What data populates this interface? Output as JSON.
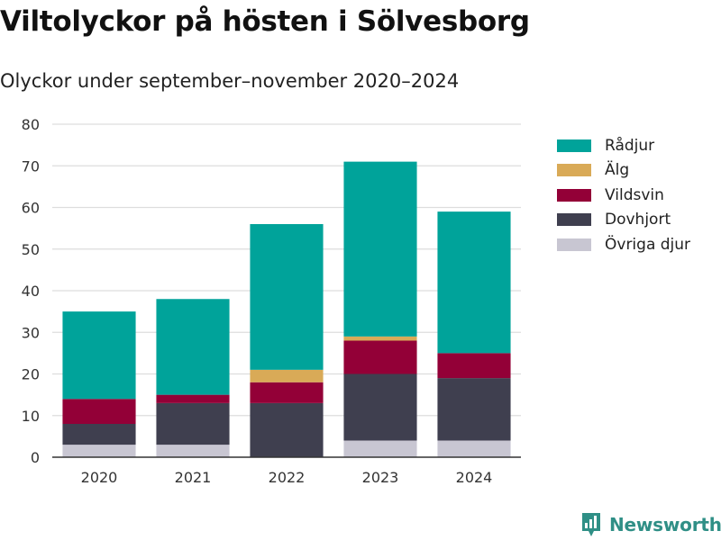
{
  "title": "Viltolyckor på hösten i Sölvesborg",
  "subtitle": "Olyckor under september–november 2020–2024",
  "brand": "Newsworthy",
  "colors": {
    "Rådjur": "#00a39a",
    "Älg": "#d9aa57",
    "Vildsvin": "#930037",
    "Dovhjort": "#3f3f4f",
    "Övriga djur": "#c8c6d2",
    "brand": "#2f8f86"
  },
  "chart_data": {
    "type": "bar",
    "stacked": true,
    "title": "Viltolyckor på hösten i Sölvesborg",
    "subtitle": "Olyckor under september–november 2020–2024",
    "xlabel": "",
    "ylabel": "",
    "categories": [
      "2020",
      "2021",
      "2022",
      "2023",
      "2024"
    ],
    "ylim": [
      0,
      80
    ],
    "yticks": [
      0,
      10,
      20,
      30,
      40,
      50,
      60,
      70,
      80
    ],
    "grid": true,
    "legend_position": "right",
    "series": [
      {
        "name": "Övriga djur",
        "values": [
          3,
          3,
          0,
          4,
          4
        ]
      },
      {
        "name": "Dovhjort",
        "values": [
          5,
          10,
          13,
          16,
          15
        ]
      },
      {
        "name": "Vildsvin",
        "values": [
          6,
          2,
          5,
          8,
          6
        ]
      },
      {
        "name": "Älg",
        "values": [
          0,
          0,
          3,
          1,
          0
        ]
      },
      {
        "name": "Rådjur",
        "values": [
          21,
          23,
          35,
          42,
          34
        ]
      }
    ],
    "legend_order": [
      "Rådjur",
      "Älg",
      "Vildsvin",
      "Dovhjort",
      "Övriga djur"
    ]
  }
}
